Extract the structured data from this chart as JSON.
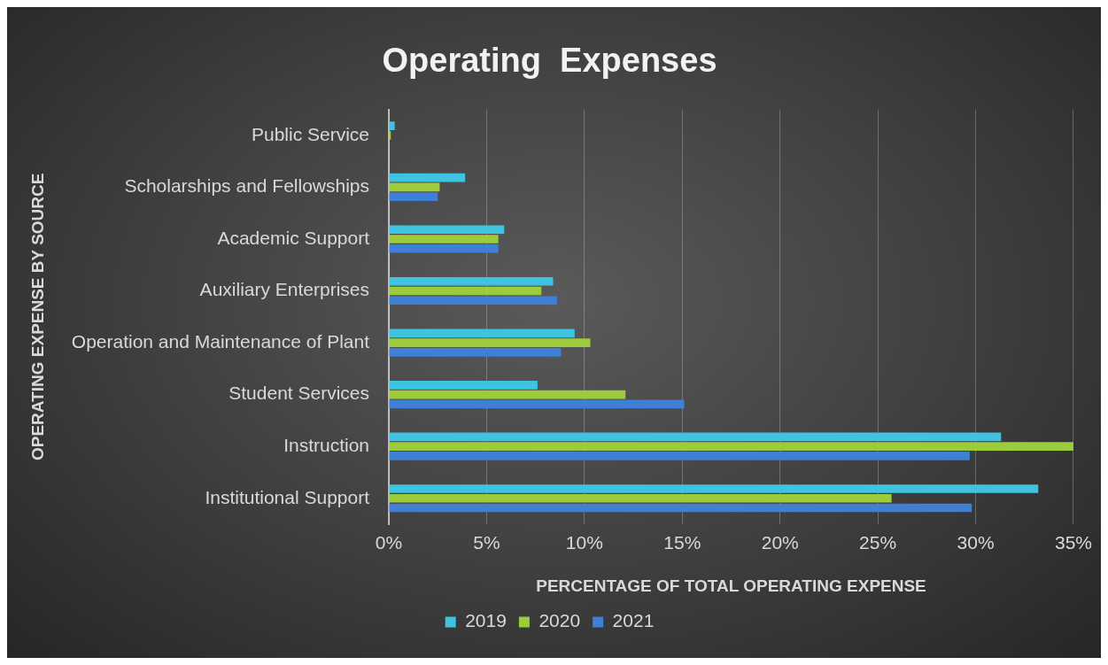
{
  "chart_data": {
    "type": "bar",
    "orientation": "horizontal",
    "title": "Operating  Expenses",
    "xlabel": "PERCENTAGE OF TOTAL OPERATING EXPENSE",
    "ylabel": "OPERATING EXPENSE BY SOURCE",
    "categories": [
      "Public Service",
      "Scholarships and Fellowships",
      "Academic Support",
      "Auxiliary Enterprises",
      "Operation and Maintenance of Plant",
      "Student Services",
      "Instruction",
      "Institutional Support"
    ],
    "series": [
      {
        "name": "2019",
        "color": "#3ec4e0",
        "values": [
          0.3,
          3.9,
          5.9,
          8.4,
          9.5,
          7.6,
          31.3,
          33.2
        ]
      },
      {
        "name": "2020",
        "color": "#9ccb3b",
        "values": [
          0.1,
          2.6,
          5.6,
          7.8,
          10.3,
          12.1,
          35.0,
          25.7
        ]
      },
      {
        "name": "2021",
        "color": "#3f7fd6",
        "values": [
          null,
          2.5,
          5.6,
          8.6,
          8.8,
          15.1,
          29.7,
          29.8
        ]
      }
    ],
    "xlim": [
      0,
      35
    ],
    "xticks": [
      {
        "value": 0,
        "label": "0%"
      },
      {
        "value": 5,
        "label": "5%"
      },
      {
        "value": 10,
        "label": "10%"
      },
      {
        "value": 15,
        "label": "15%"
      },
      {
        "value": 20,
        "label": "20%"
      },
      {
        "value": 25,
        "label": "25%"
      },
      {
        "value": 30,
        "label": "30%"
      },
      {
        "value": 35,
        "label": "35%"
      }
    ],
    "grid": "x",
    "legend": "bottom"
  }
}
